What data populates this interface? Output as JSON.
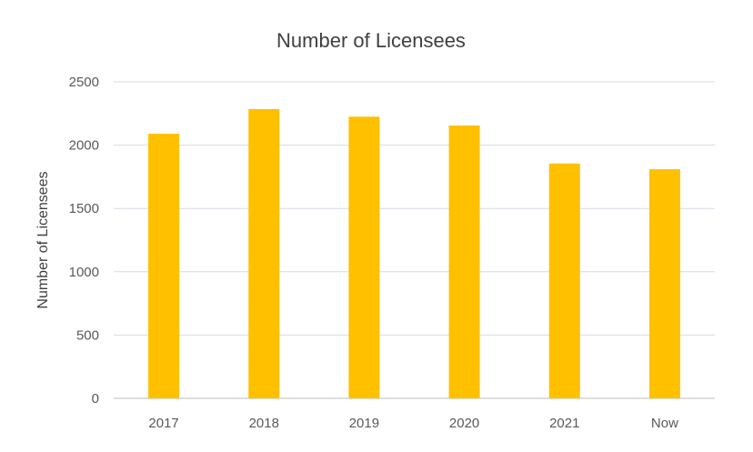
{
  "chart_data": {
    "type": "bar",
    "title": "Number of Licensees",
    "xlabel": "",
    "ylabel": "Number of Licensees",
    "categories": [
      "2017",
      "2018",
      "2019",
      "2020",
      "2021",
      "Now"
    ],
    "values": [
      2090,
      2285,
      2225,
      2155,
      1855,
      1810
    ],
    "ylim": [
      0,
      2500
    ],
    "yticks": [
      0,
      500,
      1000,
      1500,
      2000,
      2500
    ],
    "grid": true,
    "legend": "none",
    "colors": {
      "bar": "#FFC000",
      "grid": "#D9D9E6",
      "text": "#404040"
    }
  }
}
